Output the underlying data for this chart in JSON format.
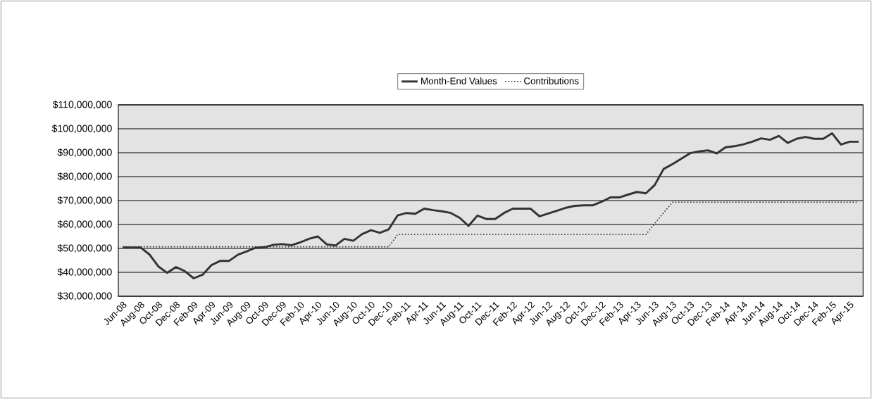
{
  "chart_data": {
    "type": "line",
    "categories": [
      "Jun-08",
      null,
      "Aug-08",
      null,
      "Oct-08",
      null,
      "Dec-08",
      null,
      "Feb-09",
      null,
      "Apr-09",
      null,
      "Jun-09",
      null,
      "Aug-09",
      null,
      "Oct-09",
      null,
      "Dec-09",
      null,
      "Feb-10",
      null,
      "Apr-10",
      null,
      "Jun-10",
      null,
      "Aug-10",
      null,
      "Oct-10",
      null,
      "Dec-10",
      null,
      "Feb-11",
      null,
      "Apr-11",
      null,
      "Jun-11",
      null,
      "Aug-11",
      null,
      "Oct-11",
      null,
      "Dec-11",
      null,
      "Feb-12",
      null,
      "Apr-12",
      null,
      "Jun-12",
      null,
      "Aug-12",
      null,
      "Oct-12",
      null,
      "Dec-12",
      null,
      "Feb-13",
      null,
      "Apr-13",
      null,
      "Jun-13",
      null,
      "Aug-13",
      null,
      "Oct-13",
      null,
      "Dec-13",
      null,
      "Feb-14",
      null,
      "Apr-14",
      null,
      "Jun-14",
      null,
      "Aug-14",
      null,
      "Oct-14",
      null,
      "Dec-14",
      null,
      "Feb-15",
      null,
      "Apr-15",
      null
    ],
    "series": [
      {
        "name": "Month-End Values",
        "color": "#333333",
        "line_style": "solid",
        "values": [
          50400000,
          50400000,
          50400000,
          47500000,
          42500000,
          39800000,
          42200000,
          40500000,
          37500000,
          39000000,
          43000000,
          44800000,
          44800000,
          47400000,
          48800000,
          50300000,
          50500000,
          51500000,
          51800000,
          51300000,
          52500000,
          54000000,
          55000000,
          51700000,
          51200000,
          54000000,
          53200000,
          56000000,
          57600000,
          56500000,
          58000000,
          63800000,
          64800000,
          64500000,
          66600000,
          66000000,
          65500000,
          64800000,
          62800000,
          59400000,
          63700000,
          62300000,
          62300000,
          64800000,
          66600000,
          66600000,
          66600000,
          63400000,
          64600000,
          65800000,
          67000000,
          67800000,
          68000000,
          68000000,
          69500000,
          71300000,
          71300000,
          72500000,
          73600000,
          73000000,
          76500000,
          83200000,
          85200000,
          87500000,
          89800000,
          90500000,
          91000000,
          89700000,
          92300000,
          92700000,
          93500000,
          94600000,
          96000000,
          95400000,
          97000000,
          94100000,
          95800000,
          96600000,
          95800000,
          95800000,
          98100000,
          93400000,
          94600000,
          94600000
        ]
      },
      {
        "name": "Contributions",
        "color": "#333333",
        "line_style": "dotted",
        "values": [
          50700000,
          50700000,
          50700000,
          50700000,
          50700000,
          50700000,
          50700000,
          50700000,
          50700000,
          50700000,
          50700000,
          50700000,
          50700000,
          50700000,
          50700000,
          50700000,
          50700000,
          50700000,
          50700000,
          50700000,
          50700000,
          50700000,
          50700000,
          50700000,
          50700000,
          50700000,
          50700000,
          50700000,
          50700000,
          50700000,
          50700000,
          55800000,
          55800000,
          55800000,
          55800000,
          55800000,
          55800000,
          55800000,
          55800000,
          55800000,
          55800000,
          55800000,
          55800000,
          55800000,
          55800000,
          55800000,
          55800000,
          55800000,
          55800000,
          55800000,
          55800000,
          55800000,
          55800000,
          55800000,
          55800000,
          55800000,
          55800000,
          55800000,
          55800000,
          55800000,
          60400000,
          64900000,
          69300000,
          69300000,
          69300000,
          69300000,
          69300000,
          69300000,
          69300000,
          69300000,
          69300000,
          69300000,
          69300000,
          69300000,
          69300000,
          69300000,
          69300000,
          69300000,
          69300000,
          69300000,
          69300000,
          69300000,
          69300000,
          69300000
        ]
      }
    ],
    "ylim": [
      30000000,
      110000000
    ],
    "yticks": [
      {
        "value": 30000000,
        "label": "$30,000,000"
      },
      {
        "value": 40000000,
        "label": "$40,000,000"
      },
      {
        "value": 50000000,
        "label": "$50,000,000"
      },
      {
        "value": 60000000,
        "label": "$60,000,000"
      },
      {
        "value": 70000000,
        "label": "$70,000,000"
      },
      {
        "value": 80000000,
        "label": "$80,000,000"
      },
      {
        "value": 90000000,
        "label": "$90,000,000"
      },
      {
        "value": 100000000,
        "label": "$100,000,000"
      },
      {
        "value": 110000000,
        "label": "$110,000,000"
      }
    ],
    "grid": "y",
    "legend": "top",
    "marker": "none"
  }
}
